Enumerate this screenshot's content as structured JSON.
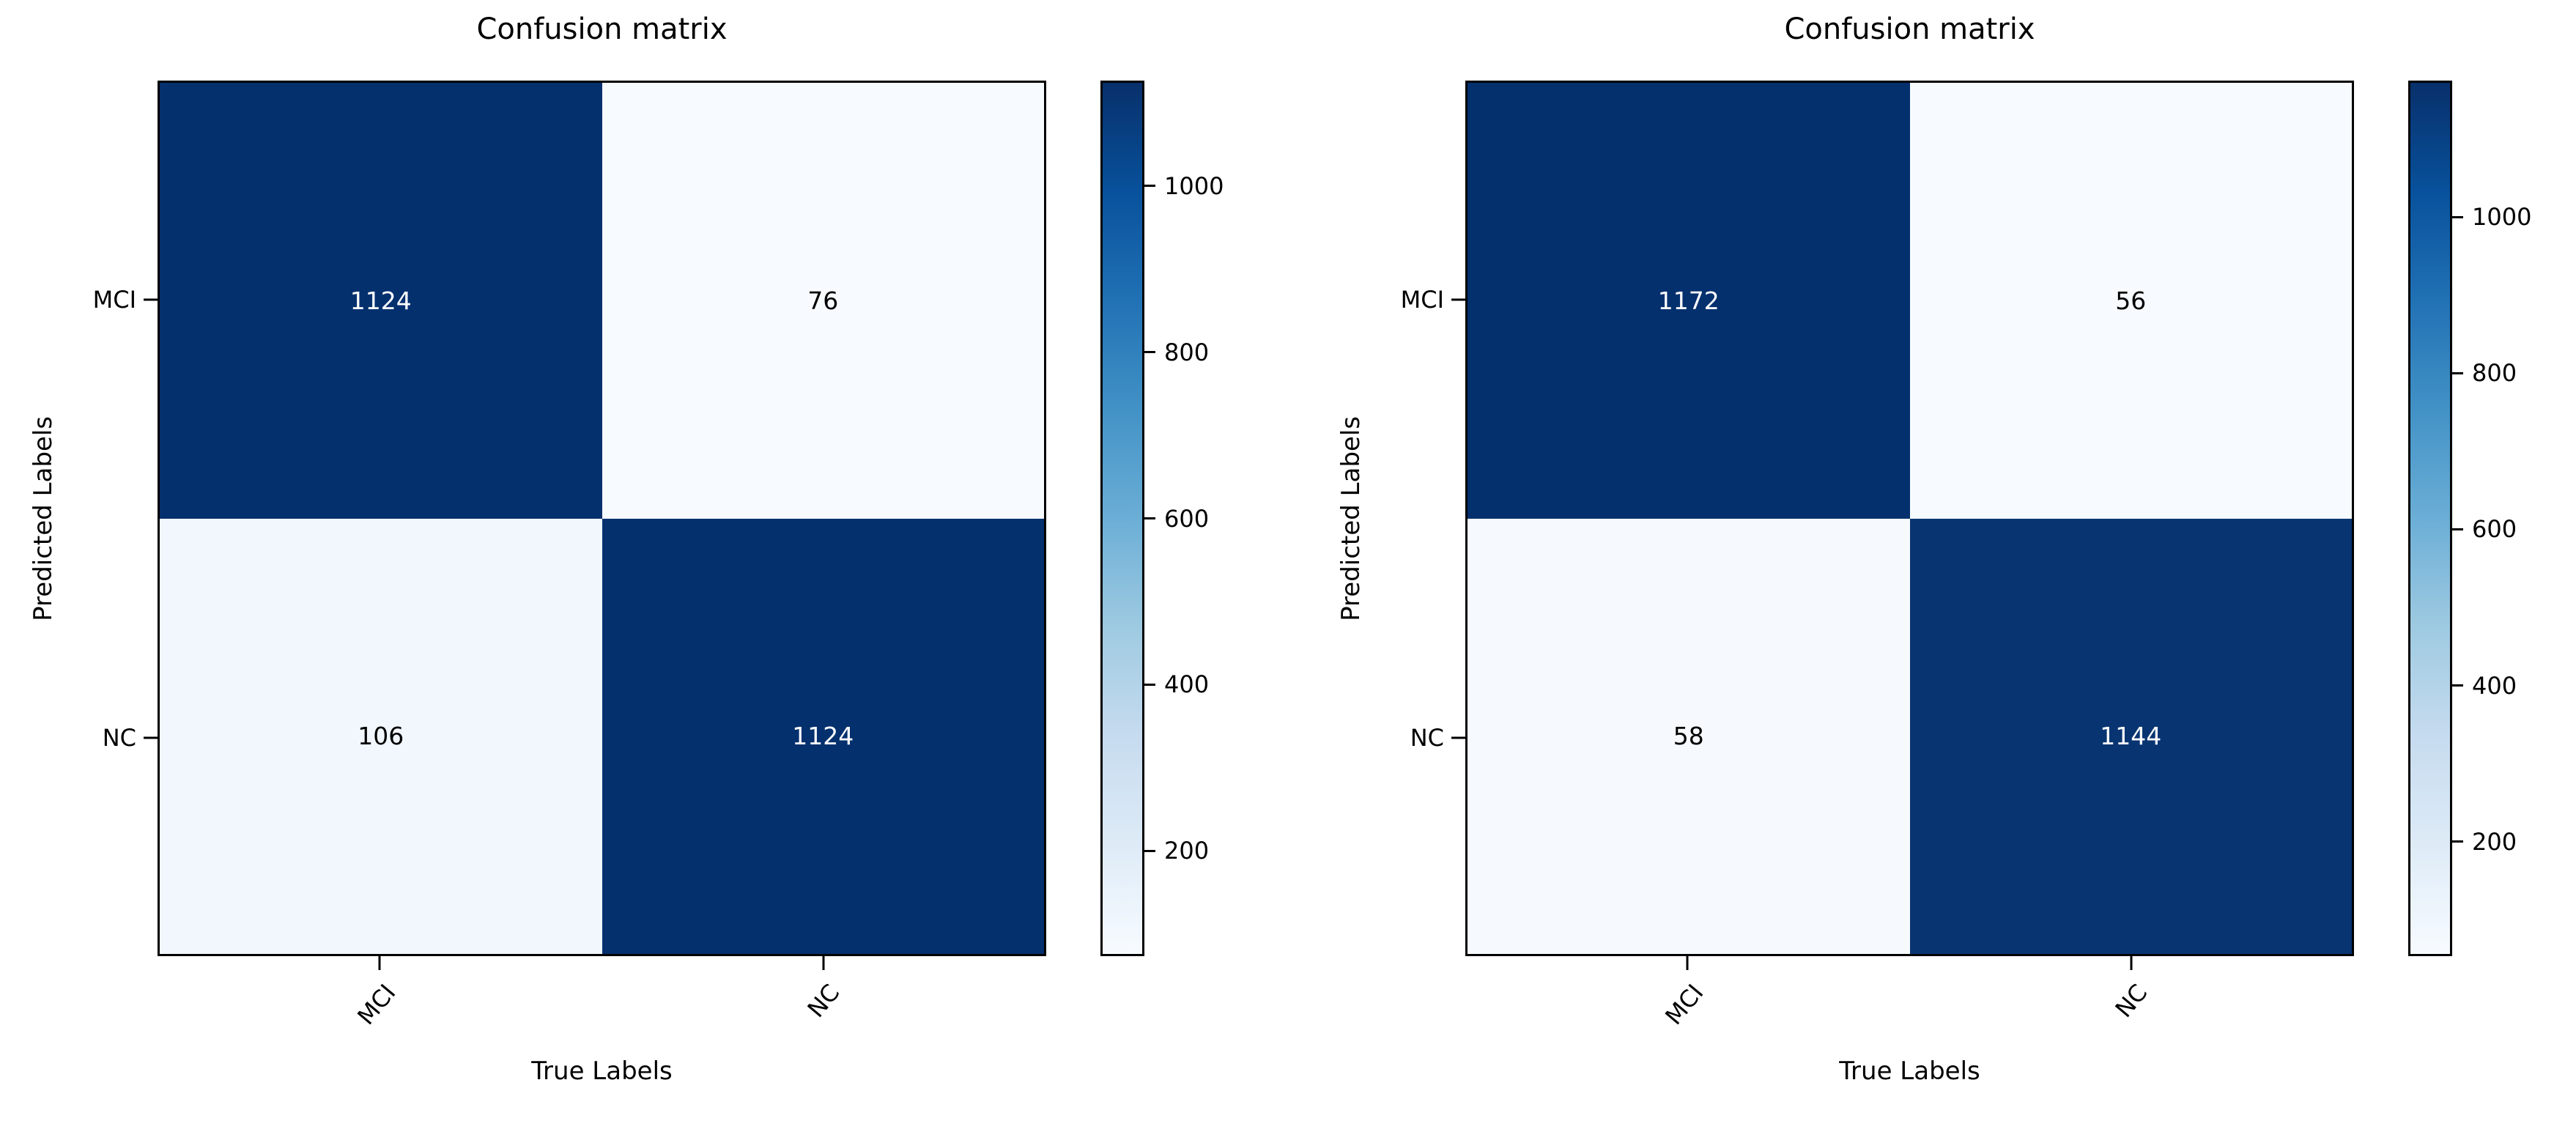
{
  "figure": {
    "background": "#ffffff",
    "accent_dark": "#08306b",
    "accent_light": "#f7fbff"
  },
  "colormap_stops": [
    "#f7fbff",
    "#deebf7",
    "#c6dbef",
    "#9ecae1",
    "#6baed6",
    "#4292c6",
    "#2171b5",
    "#08519c",
    "#08306b"
  ],
  "chart_data": [
    {
      "type": "heatmap",
      "title": "Confusion matrix",
      "xlabel": "True Labels",
      "ylabel": "Predicted Labels",
      "x_categories": [
        "MCI",
        "NC"
      ],
      "y_categories": [
        "MCI",
        "NC"
      ],
      "matrix": [
        [
          1124,
          76
        ],
        [
          106,
          1124
        ]
      ],
      "vmin": 76,
      "vmax": 1124,
      "colormap": "Blues",
      "colorbar_position": "right",
      "colorbar_ticks": [
        200,
        400,
        600,
        800,
        1000
      ],
      "xtick_rotation_deg": 50,
      "grid": false,
      "cell_colors": [
        [
          "#04306e",
          "#f7fbff"
        ],
        [
          "#f1f7fd",
          "#04306e"
        ]
      ],
      "cell_text_colors": [
        [
          "#ffffff",
          "#000000"
        ],
        [
          "#000000",
          "#ffffff"
        ]
      ]
    },
    {
      "type": "heatmap",
      "title": "Confusion matrix",
      "xlabel": "True Labels",
      "ylabel": "Predicted Labels",
      "x_categories": [
        "MCI",
        "NC"
      ],
      "y_categories": [
        "MCI",
        "NC"
      ],
      "matrix": [
        [
          1172,
          56
        ],
        [
          58,
          1144
        ]
      ],
      "vmin": 56,
      "vmax": 1172,
      "colormap": "Blues",
      "colorbar_position": "right",
      "colorbar_ticks": [
        200,
        400,
        600,
        800,
        1000
      ],
      "xtick_rotation_deg": 50,
      "grid": false,
      "cell_colors": [
        [
          "#04306e",
          "#f7fbff"
        ],
        [
          "#f6fafe",
          "#083572"
        ]
      ],
      "cell_text_colors": [
        [
          "#ffffff",
          "#000000"
        ],
        [
          "#000000",
          "#ffffff"
        ]
      ]
    }
  ]
}
